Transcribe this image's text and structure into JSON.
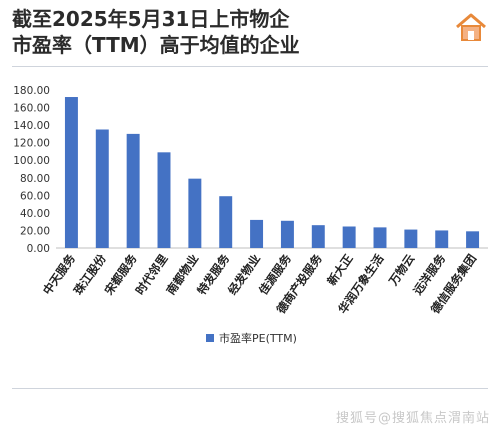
{
  "header": {
    "title_line1": "截至2025年5月31日上市物企",
    "title_line2": "市盈率（TTM）高于均值的企业",
    "logo_icon": "home-icon"
  },
  "watermark": "搜狐号@搜狐焦点渭南站",
  "colors": {
    "bar": "#4472c4",
    "axis": "#bfbfbf",
    "accent_logo": "#e8893a"
  },
  "chart_data": {
    "type": "bar",
    "categories": [
      "中天服务",
      "珠江股份",
      "宋都服务",
      "时代邻里",
      "南都物业",
      "特发服务",
      "经发物业",
      "佳源服务",
      "德商产投服务",
      "新大正",
      "华润万象生活",
      "万物云",
      "远洋服务",
      "德信服务集团"
    ],
    "series": [
      {
        "name": "市盈率PE(TTM)",
        "values": [
          172,
          135,
          130,
          109,
          79,
          59,
          32,
          31,
          26,
          24.5,
          23.5,
          21,
          20,
          19
        ]
      }
    ],
    "ylim": [
      0,
      180
    ],
    "yticks": [
      "0.00",
      "20.00",
      "40.00",
      "60.00",
      "80.00",
      "100.00",
      "120.00",
      "140.00",
      "160.00",
      "180.00"
    ],
    "grid": false,
    "legend": "bottom-left"
  }
}
